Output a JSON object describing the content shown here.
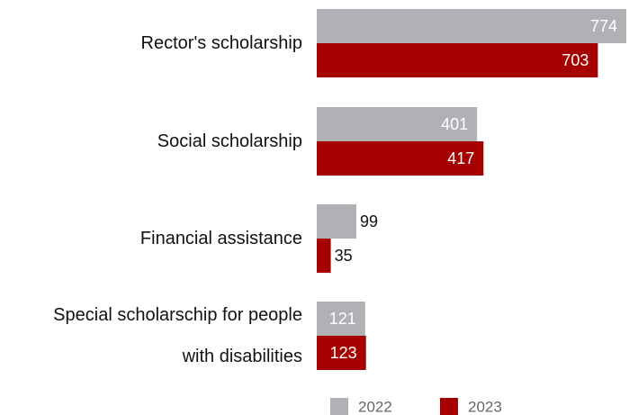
{
  "chart_data": {
    "type": "bar",
    "orientation": "horizontal",
    "categories": [
      [
        "Rector's scholarship"
      ],
      [
        "Social scholarship"
      ],
      [
        "Financial assistance"
      ],
      [
        "Special scholarschip for people",
        "with disabilities"
      ]
    ],
    "series": [
      {
        "name": "2022",
        "color": "#b1b1b5",
        "values": [
          774,
          401,
          99,
          121
        ]
      },
      {
        "name": "2023",
        "color": "#a60000",
        "values": [
          703,
          417,
          35,
          123
        ]
      }
    ],
    "xlim": [
      0,
      774
    ],
    "grid": false,
    "legend_position": "bottom"
  }
}
